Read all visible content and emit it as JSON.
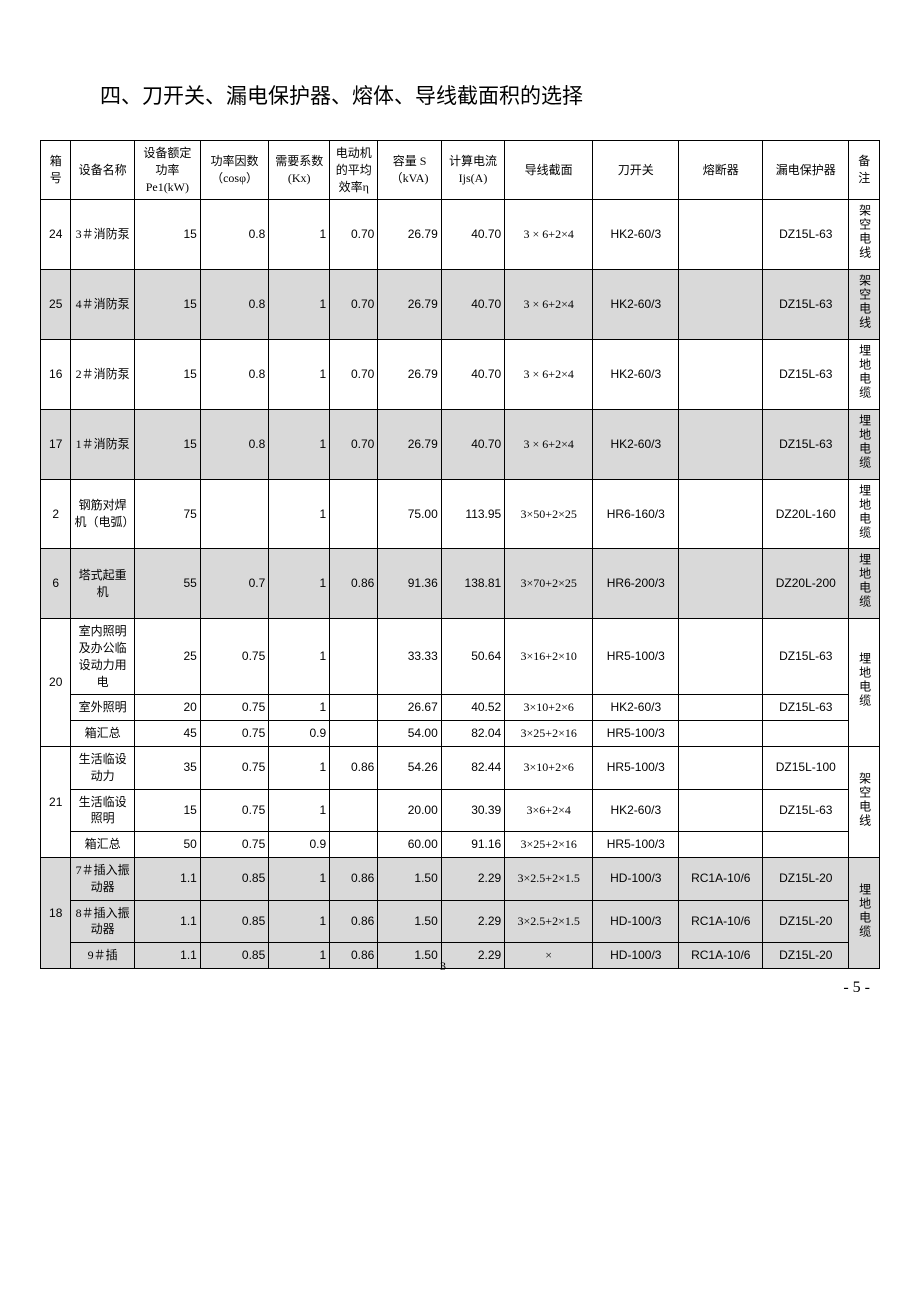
{
  "heading": "四、刀开关、漏电保护器、熔体、导线截面积的选择",
  "columns": {
    "box": "箱号",
    "name": "设备名称",
    "pe": "设备额定功率Pe1(kW)",
    "cos": "功率因数（cosφ）",
    "kx": "需要系数(Kx)",
    "eta": "电动机的平均效率η",
    "s": "容量 S（kVA)",
    "ijs": "计算电流Ijs(A)",
    "sec": "导线截面",
    "sw": "刀开关",
    "fuse": "熔断器",
    "prot": "漏电保护器",
    "note": "备注"
  },
  "groups": [
    {
      "alt": false,
      "note": "架空电线",
      "rows": [
        {
          "box": "24",
          "name": "3＃消防泵",
          "pe": "15",
          "cos": "0.8",
          "kx": "1",
          "eta": "0.70",
          "s": "26.79",
          "ijs": "40.70",
          "sec": "3 × 6+2×4",
          "sw": "HK2-60/3",
          "fuse": "",
          "prot": "DZ15L-63"
        }
      ]
    },
    {
      "alt": true,
      "note": "架空电线",
      "rows": [
        {
          "box": "25",
          "name": "4＃消防泵",
          "pe": "15",
          "cos": "0.8",
          "kx": "1",
          "eta": "0.70",
          "s": "26.79",
          "ijs": "40.70",
          "sec": "3 × 6+2×4",
          "sw": "HK2-60/3",
          "fuse": "",
          "prot": "DZ15L-63"
        }
      ]
    },
    {
      "alt": false,
      "note": "埋地电缆",
      "rows": [
        {
          "box": "16",
          "name": "2＃消防泵",
          "pe": "15",
          "cos": "0.8",
          "kx": "1",
          "eta": "0.70",
          "s": "26.79",
          "ijs": "40.70",
          "sec": "3 × 6+2×4",
          "sw": "HK2-60/3",
          "fuse": "",
          "prot": "DZ15L-63"
        }
      ]
    },
    {
      "alt": true,
      "note": "埋地电缆",
      "rows": [
        {
          "box": "17",
          "name": "1＃消防泵",
          "pe": "15",
          "cos": "0.8",
          "kx": "1",
          "eta": "0.70",
          "s": "26.79",
          "ijs": "40.70",
          "sec": "3 × 6+2×4",
          "sw": "HK2-60/3",
          "fuse": "",
          "prot": "DZ15L-63"
        }
      ]
    },
    {
      "alt": false,
      "note": "埋地电缆",
      "rows": [
        {
          "box": "2",
          "name": "钢筋对焊机（电弧）",
          "pe": "75",
          "cos": "",
          "kx": "1",
          "eta": "",
          "s": "75.00",
          "ijs": "113.95",
          "sec": "3×50+2×25",
          "sw": "HR6-160/3",
          "fuse": "",
          "prot": "DZ20L-160"
        }
      ]
    },
    {
      "alt": true,
      "note": "埋地电缆",
      "rows": [
        {
          "box": "6",
          "name": "塔式起重机",
          "pe": "55",
          "cos": "0.7",
          "kx": "1",
          "eta": "0.86",
          "s": "91.36",
          "ijs": "138.81",
          "sec": "3×70+2×25",
          "sw": "HR6-200/3",
          "fuse": "",
          "prot": "DZ20L-200"
        }
      ]
    },
    {
      "alt": false,
      "note": "埋地电缆",
      "rows": [
        {
          "box": "20",
          "name": "室内照明及办公临设动力用电",
          "pe": "25",
          "cos": "0.75",
          "kx": "1",
          "eta": "",
          "s": "33.33",
          "ijs": "50.64",
          "sec": "3×16+2×10",
          "sw": "HR5-100/3",
          "fuse": "",
          "prot": "DZ15L-63"
        },
        {
          "name": "室外照明",
          "pe": "20",
          "cos": "0.75",
          "kx": "1",
          "eta": "",
          "s": "26.67",
          "ijs": "40.52",
          "sec": "3×10+2×6",
          "sw": "HK2-60/3",
          "fuse": "",
          "prot": "DZ15L-63"
        },
        {
          "name": "箱汇总",
          "pe": "45",
          "cos": "0.75",
          "kx": "0.9",
          "eta": "",
          "s": "54.00",
          "ijs": "82.04",
          "sec": "3×25+2×16",
          "sw": "HR5-100/3",
          "fuse": "",
          "prot": ""
        }
      ]
    },
    {
      "alt": false,
      "note": "架空电线",
      "rows": [
        {
          "box": "21",
          "name": "生活临设动力",
          "pe": "35",
          "cos": "0.75",
          "kx": "1",
          "eta": "0.86",
          "s": "54.26",
          "ijs": "82.44",
          "sec": "3×10+2×6",
          "sw": "HR5-100/3",
          "fuse": "",
          "prot": "DZ15L-100"
        },
        {
          "name": "生活临设照明",
          "pe": "15",
          "cos": "0.75",
          "kx": "1",
          "eta": "",
          "s": "20.00",
          "ijs": "30.39",
          "sec": "3×6+2×4",
          "sw": "HK2-60/3",
          "fuse": "",
          "prot": "DZ15L-63"
        },
        {
          "name": "箱汇总",
          "pe": "50",
          "cos": "0.75",
          "kx": "0.9",
          "eta": "",
          "s": "60.00",
          "ijs": "91.16",
          "sec": "3×25+2×16",
          "sw": "HR5-100/3",
          "fuse": "",
          "prot": ""
        }
      ]
    },
    {
      "alt": true,
      "note": "埋地电缆",
      "rows": [
        {
          "box": "18",
          "name": "7＃插入振动器",
          "pe": "1.1",
          "cos": "0.85",
          "kx": "1",
          "eta": "0.86",
          "s": "1.50",
          "ijs": "2.29",
          "sec": "3×2.5+2×1.5",
          "sw": "HD-100/3",
          "fuse": "RC1A-10/6",
          "prot": "DZ15L-20"
        },
        {
          "name": "8＃插入振动器",
          "pe": "1.1",
          "cos": "0.85",
          "kx": "1",
          "eta": "0.86",
          "s": "1.50",
          "ijs": "2.29",
          "sec": "3×2.5+2×1.5",
          "sw": "HD-100/3",
          "fuse": "RC1A-10/6",
          "prot": "DZ15L-20"
        },
        {
          "name": "9＃插",
          "pe": "1.1",
          "cos": "0.85",
          "kx": "1",
          "eta": "0.86",
          "s": "1.50",
          "ijs": "2.29",
          "sec": "×",
          "sw": "HD-100/3",
          "fuse": "RC1A-10/6",
          "prot": "DZ15L-20",
          "trunc": true
        }
      ]
    }
  ],
  "pageLabel": "- 5 -",
  "truncFoot": "3"
}
